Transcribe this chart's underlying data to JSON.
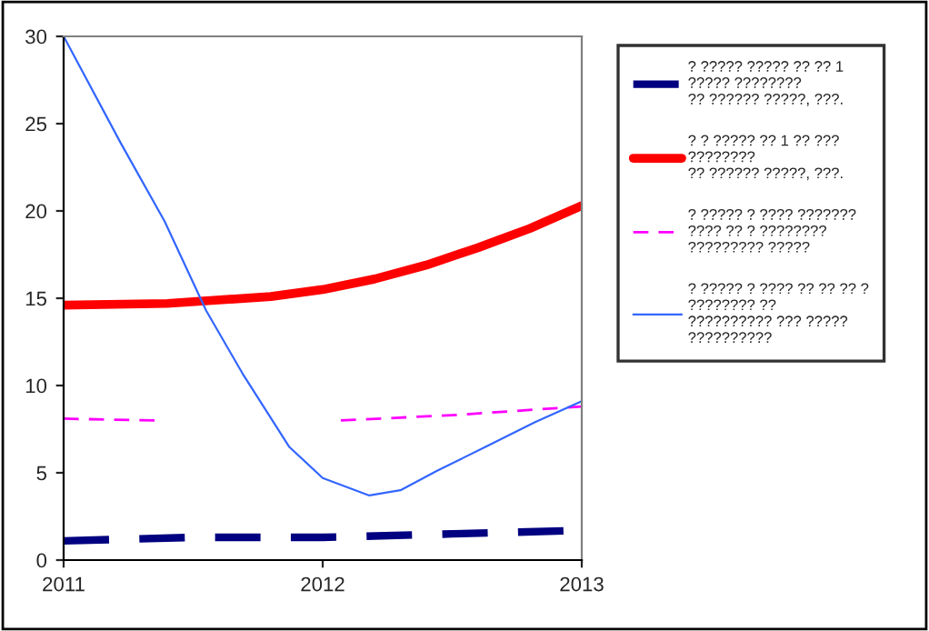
{
  "chart_data": {
    "type": "line",
    "xlim": [
      2011,
      2013
    ],
    "xticks": [
      2011,
      2012,
      2013
    ],
    "ylim": [
      0,
      30
    ],
    "yticks": [
      0,
      5,
      10,
      15,
      20,
      25,
      30
    ],
    "grid": false,
    "legend": "right",
    "marker": "none",
    "series": [
      {
        "name": "? ????? ????? ?? ?? 1\n????? ????????\n?? ?????? ?????, ???.",
        "color": "#000080",
        "line_style": "dashed",
        "x": [
          2011,
          2011.5,
          2012,
          2012.5,
          2013
        ],
        "values": [
          1.1,
          1.3,
          1.3,
          1.5,
          1.7
        ]
      },
      {
        "name": "? ? ????? ?? 1 ?? ???\n????????\n?? ?????? ?????, ???.",
        "color": "#ff0000",
        "line_style": "solid",
        "x": [
          2011,
          2011.4,
          2011.8,
          2012,
          2012.2,
          2012.4,
          2012.6,
          2012.8,
          2013
        ],
        "values": [
          14.6,
          14.7,
          15.1,
          15.5,
          16.1,
          16.9,
          17.9,
          19.0,
          20.3
        ]
      },
      {
        "name": "? ????? ? ???? ???????\n???? ?? ? ????????\n????????? ?????",
        "color": "#ff00ff",
        "line_style": "dashed",
        "x": [
          2011,
          2011.36,
          2011.7,
          2012.07,
          2012.5,
          2013
        ],
        "values": [
          8.1,
          8.0,
          null,
          8.0,
          8.3,
          8.8
        ]
      },
      {
        "name": "? ????? ? ???? ?? ?? ?? ?\n???????? ??\n?????????? ??? ?????\n??????????",
        "color": "#3366ff",
        "line_style": "solid",
        "x": [
          2011,
          2011.22,
          2011.39,
          2011.55,
          2011.69,
          2011.87,
          2012,
          2012.18,
          2012.3,
          2012.44,
          2012.63,
          2012.82,
          2013
        ],
        "values": [
          30,
          23.9,
          19.4,
          14.3,
          10.7,
          6.5,
          4.7,
          3.7,
          4.0,
          5.1,
          6.5,
          7.9,
          9.1
        ]
      }
    ]
  }
}
